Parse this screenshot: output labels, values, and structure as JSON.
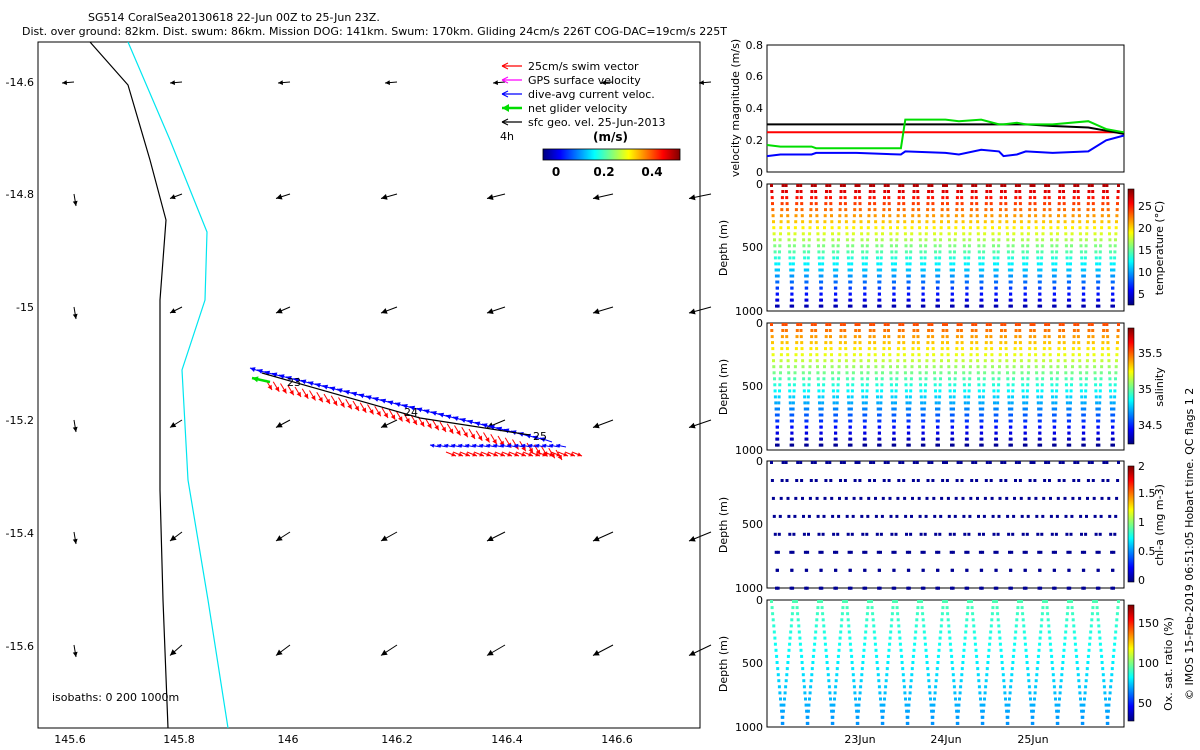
{
  "header": {
    "line1": "SG514 CoralSea20130618 22-Jun 00Z to 25-Jun 23Z.",
    "line2": "Dist. over ground: 82km. Dist. swum: 86km. Mission DOG: 141km. Swum: 170km. Gliding 24cm/s 226T COG-DAC=19cm/s 225T"
  },
  "map": {
    "xticks": [
      "145.6",
      "145.8",
      "146",
      "146.2",
      "146.4",
      "146.6"
    ],
    "yticks": [
      "-14.6",
      "-14.8",
      "-15",
      "-15.2",
      "-15.4",
      "-15.6"
    ],
    "legend": [
      {
        "label": "25cm/s swim vector",
        "color": "#ff0000"
      },
      {
        "label": "GPS surface velocity",
        "color": "#ff00ff"
      },
      {
        "label": "dive-avg current veloc.",
        "color": "#0000ff"
      },
      {
        "label": "net glider velocity",
        "color": "#00dd00"
      },
      {
        "label": "sfc geo. vel. 25-Jun-2013",
        "color": "#000000"
      }
    ],
    "legend_time": "4h",
    "colorbar_title": "(m/s)",
    "colorbar_ticks": [
      "0",
      "0.2",
      "0.4"
    ],
    "track_day_labels": [
      "23",
      "24",
      "25"
    ],
    "isobaths": "isobaths: 0   200  1000m"
  },
  "chart_data": [
    {
      "type": "line",
      "ylabel": "velocity magnitude (m/s)",
      "ylim": [
        0,
        0.8
      ],
      "yticks": [
        "0",
        "0.2",
        "0.4",
        "0.6",
        "0.8"
      ],
      "x": [
        0,
        0.15,
        0.5,
        0.55,
        1.0,
        1.5,
        1.55,
        2.0,
        2.15,
        2.4,
        2.6,
        2.65,
        2.8,
        2.9,
        3.2,
        3.6,
        3.8,
        4.0
      ],
      "series": [
        {
          "color": "#ff0000",
          "values": [
            0.25,
            0.25,
            0.25,
            0.25,
            0.25,
            0.25,
            0.25,
            0.25,
            0.25,
            0.25,
            0.25,
            0.25,
            0.25,
            0.25,
            0.25,
            0.25,
            0.25,
            0.25
          ]
        },
        {
          "color": "#000000",
          "values": [
            0.3,
            0.3,
            0.3,
            0.3,
            0.3,
            0.3,
            0.3,
            0.3,
            0.3,
            0.3,
            0.3,
            0.3,
            0.3,
            0.3,
            0.29,
            0.28,
            0.26,
            0.24
          ]
        },
        {
          "color": "#00dd00",
          "values": [
            0.17,
            0.16,
            0.16,
            0.15,
            0.15,
            0.15,
            0.33,
            0.33,
            0.32,
            0.33,
            0.3,
            0.3,
            0.31,
            0.3,
            0.3,
            0.32,
            0.27,
            0.25
          ]
        },
        {
          "color": "#0000ff",
          "values": [
            0.1,
            0.11,
            0.11,
            0.12,
            0.12,
            0.11,
            0.13,
            0.12,
            0.11,
            0.14,
            0.13,
            0.1,
            0.11,
            0.13,
            0.12,
            0.13,
            0.2,
            0.23
          ]
        }
      ]
    },
    {
      "type": "scatter",
      "ylabel": "Depth (m)",
      "ylim": [
        0,
        1000
      ],
      "yticks": [
        "0",
        "500",
        "1000"
      ],
      "colorbar": {
        "label": "temperature (°C)",
        "ticks": [
          "5",
          "10",
          "15",
          "20",
          "25"
        ],
        "range": [
          2,
          29
        ]
      },
      "dives": 24,
      "max_depth": 950
    },
    {
      "type": "scatter",
      "ylabel": "Depth (m)",
      "ylim": [
        0,
        1000
      ],
      "yticks": [
        "0",
        "500",
        "1000"
      ],
      "colorbar": {
        "label": "salinity",
        "ticks": [
          "34.5",
          "35",
          "35.5"
        ],
        "range": [
          34.3,
          35.9
        ]
      },
      "dives": 24,
      "max_depth": 950
    },
    {
      "type": "scatter",
      "ylabel": "Depth (m)",
      "ylim": [
        0,
        1000
      ],
      "yticks": [
        "0",
        "500",
        "1000"
      ],
      "colorbar": {
        "label": "chl-a (mg m-3)",
        "ticks": [
          "0",
          "0.5",
          "1",
          "1.5",
          "2"
        ],
        "range": [
          0,
          2
        ]
      },
      "dives": 24,
      "max_depth": 990
    },
    {
      "type": "scatter",
      "ylabel": "Depth (m)",
      "ylim": [
        0,
        1000
      ],
      "yticks": [
        "0",
        "500",
        "1000"
      ],
      "colorbar": {
        "label": "Ox. sat. ratio (%)",
        "ticks": [
          "50",
          "100",
          "150"
        ],
        "range": [
          20,
          175
        ]
      },
      "dives": 14,
      "max_depth": 960,
      "xticks": [
        "23Jun",
        "24Jun",
        "25Jun"
      ]
    }
  ],
  "right_edge_text": "© IMOS 15-Feb-2019 06:51:05 Hobart time. QC flags 1  2"
}
